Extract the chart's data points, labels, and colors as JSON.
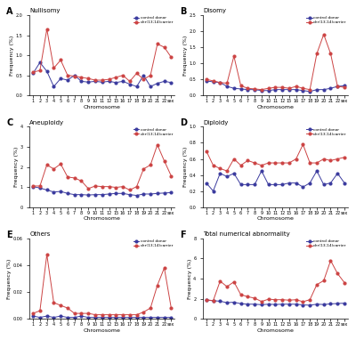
{
  "x_labels": [
    "1",
    "2",
    "3",
    "4",
    "5",
    "6",
    "7",
    "8",
    "9",
    "10",
    "11",
    "12",
    "15",
    "16",
    "17",
    "18",
    "19",
    "20",
    "21",
    "22",
    "sex"
  ],
  "A_title": "Nullisomy",
  "A_control": [
    0.55,
    0.82,
    0.6,
    0.22,
    0.42,
    0.38,
    0.5,
    0.35,
    0.33,
    0.35,
    0.33,
    0.35,
    0.32,
    0.35,
    0.28,
    0.22,
    0.5,
    0.22,
    0.3,
    0.35,
    0.32
  ],
  "A_carrier": [
    0.58,
    0.62,
    1.65,
    0.68,
    0.88,
    0.5,
    0.48,
    0.45,
    0.42,
    0.38,
    0.38,
    0.4,
    0.45,
    0.5,
    0.35,
    0.55,
    0.4,
    0.5,
    1.28,
    1.2,
    0.95
  ],
  "A_ylim": [
    0.0,
    2.0
  ],
  "A_yticks": [
    0.0,
    0.5,
    1.0,
    1.5,
    2.0
  ],
  "B_title": "Disomy",
  "B_control": [
    0.45,
    0.42,
    0.4,
    0.28,
    0.22,
    0.2,
    0.18,
    0.18,
    0.15,
    0.15,
    0.18,
    0.18,
    0.18,
    0.18,
    0.15,
    0.12,
    0.18,
    0.18,
    0.22,
    0.28,
    0.3
  ],
  "B_carrier": [
    0.5,
    0.45,
    0.4,
    0.38,
    1.22,
    0.3,
    0.22,
    0.2,
    0.18,
    0.22,
    0.25,
    0.25,
    0.22,
    0.28,
    0.22,
    0.18,
    1.3,
    1.9,
    1.3,
    0.28,
    0.25
  ],
  "B_ylim": [
    0.0,
    2.5
  ],
  "B_yticks": [
    0.0,
    0.5,
    1.0,
    1.5,
    2.0,
    2.5
  ],
  "C_title": "Aneuploidy",
  "C_control": [
    1.02,
    0.95,
    0.85,
    0.75,
    0.78,
    0.68,
    0.62,
    0.62,
    0.6,
    0.62,
    0.62,
    0.65,
    0.68,
    0.68,
    0.62,
    0.58,
    0.65,
    0.65,
    0.68,
    0.7,
    0.72
  ],
  "C_carrier": [
    1.05,
    1.05,
    2.1,
    1.9,
    2.15,
    1.5,
    1.45,
    1.3,
    0.92,
    1.05,
    1.02,
    1.02,
    0.98,
    1.02,
    0.85,
    1.02,
    1.9,
    2.1,
    3.1,
    2.3,
    1.55
  ],
  "C_ylim": [
    0.0,
    4.0
  ],
  "C_yticks": [
    0,
    1,
    2,
    3,
    4
  ],
  "D_title": "Diploidy",
  "D_control": [
    0.3,
    0.2,
    0.42,
    0.38,
    0.42,
    0.28,
    0.28,
    0.28,
    0.45,
    0.28,
    0.28,
    0.28,
    0.3,
    0.3,
    0.25,
    0.3,
    0.45,
    0.28,
    0.3,
    0.42,
    0.3
  ],
  "D_carrier": [
    0.7,
    0.52,
    0.48,
    0.45,
    0.6,
    0.52,
    0.58,
    0.55,
    0.52,
    0.55,
    0.55,
    0.55,
    0.55,
    0.6,
    0.78,
    0.55,
    0.55,
    0.6,
    0.58,
    0.6,
    0.62
  ],
  "D_ylim": [
    0.0,
    1.0
  ],
  "D_yticks": [
    0.0,
    0.2,
    0.4,
    0.6,
    0.8,
    1.0
  ],
  "E_title": "Others",
  "E_control": [
    0.002,
    0.001,
    0.002,
    0.001,
    0.002,
    0.001,
    0.001,
    0.002,
    0.001,
    0.001,
    0.001,
    0.001,
    0.001,
    0.001,
    0.001,
    0.001,
    0.001,
    0.001,
    0.001,
    0.001,
    0.001
  ],
  "E_carrier": [
    0.004,
    0.006,
    0.048,
    0.012,
    0.01,
    0.008,
    0.004,
    0.004,
    0.004,
    0.003,
    0.003,
    0.003,
    0.003,
    0.003,
    0.003,
    0.003,
    0.005,
    0.008,
    0.025,
    0.038,
    0.008
  ],
  "E_ylim": [
    0.0,
    0.06
  ],
  "E_yticks": [
    0.0,
    0.02,
    0.04,
    0.06
  ],
  "F_title": "Total numerical abnormality",
  "F_control": [
    1.85,
    1.8,
    1.75,
    1.6,
    1.65,
    1.5,
    1.45,
    1.45,
    1.4,
    1.45,
    1.42,
    1.45,
    1.45,
    1.45,
    1.38,
    1.35,
    1.45,
    1.42,
    1.48,
    1.52,
    1.55
  ],
  "F_carrier": [
    1.9,
    1.8,
    3.75,
    3.2,
    3.68,
    2.4,
    2.2,
    2.05,
    1.72,
    1.95,
    1.9,
    1.9,
    1.85,
    1.9,
    1.7,
    1.9,
    3.4,
    3.8,
    5.8,
    4.5,
    3.6
  ],
  "F_ylim": [
    0.0,
    8.0
  ],
  "F_yticks": [
    0,
    2,
    4,
    6,
    8
  ],
  "control_color": "#3B3B9E",
  "carrier_color": "#CC4444",
  "control_label": "control donor",
  "carrier_label": "der(13;14)carrier",
  "xlabel": "Chromosome",
  "ylabel": "Frequency (%)"
}
